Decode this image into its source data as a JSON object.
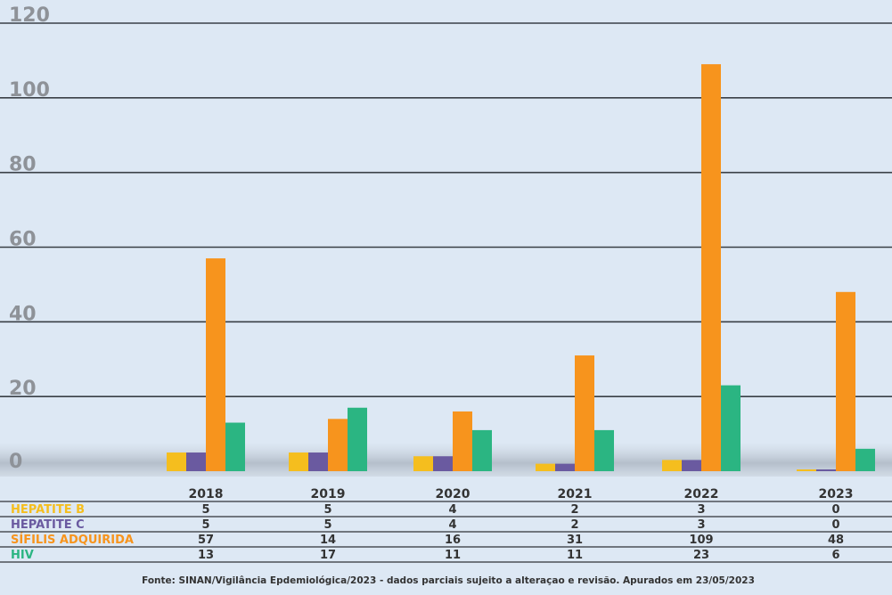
{
  "chart_data": {
    "type": "bar",
    "categories": [
      "2018",
      "2019",
      "2020",
      "2021",
      "2022",
      "2023"
    ],
    "series": [
      {
        "name": "HEPATITE B",
        "values": [
          5,
          5,
          4,
          2,
          3,
          0
        ],
        "color": "#f5be1e"
      },
      {
        "name": "HEPATITE C",
        "values": [
          5,
          5,
          4,
          2,
          3,
          0
        ],
        "color": "#6a5aa0"
      },
      {
        "name": "SÍFILIS ADQUIRIDA",
        "values": [
          57,
          14,
          16,
          31,
          109,
          48
        ],
        "color": "#f7941d"
      },
      {
        "name": "HIV",
        "values": [
          13,
          17,
          11,
          11,
          23,
          6
        ],
        "color": "#2bb582"
      }
    ],
    "yticks": [
      0,
      20,
      40,
      60,
      80,
      100,
      120
    ],
    "ylim": [
      0,
      120
    ],
    "grid": true,
    "legend": "table-below",
    "source": "Fonte: SINAN/Vigilância Epdemiológica/2023 - dados parciais sujeito a alteraçao e revisão. Apurados em 23/05/2023"
  }
}
